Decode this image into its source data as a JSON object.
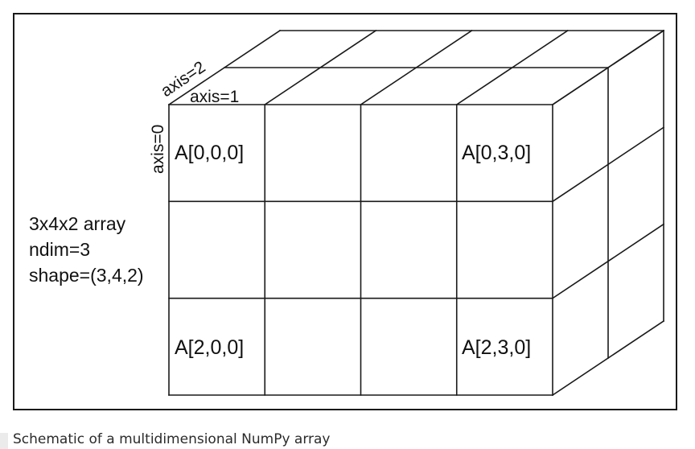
{
  "diagram": {
    "axis_labels": {
      "axis0": "axis=0",
      "axis1": "axis=1",
      "axis2": "axis=2"
    },
    "cell_labels": {
      "cell_0_0_0": "A[0,0,0]",
      "cell_0_3_0": "A[0,3,0]",
      "cell_2_0_0": "A[2,0,0]",
      "cell_2_3_0": "A[2,3,0]"
    },
    "info": {
      "line1": "3x4x2 array",
      "line2": "ndim=3",
      "line3": "shape=(3,4,2)"
    },
    "line_color": "#1a1a1a"
  },
  "caption": "Schematic of a multidimensional NumPy array"
}
